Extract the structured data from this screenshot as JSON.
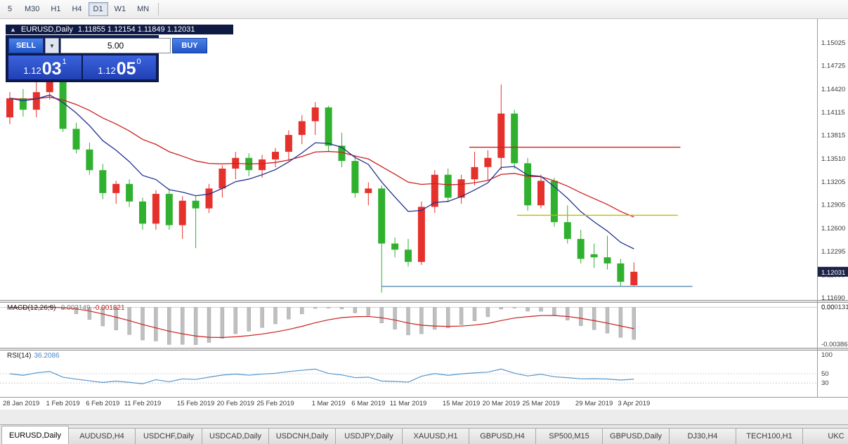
{
  "toolbar": {
    "timeframes": [
      {
        "label": "5",
        "selected": false
      },
      {
        "label": "M30",
        "selected": false
      },
      {
        "label": "H1",
        "selected": false
      },
      {
        "label": "H4",
        "selected": false
      },
      {
        "label": "D1",
        "selected": true
      },
      {
        "label": "W1",
        "selected": false
      },
      {
        "label": "MN",
        "selected": false
      }
    ]
  },
  "chart_header": {
    "symbol_title": "EURUSD,Daily",
    "ohlc": "1.11855 1.12154 1.11849 1.12031"
  },
  "trade_panel": {
    "sell_label": "SELL",
    "buy_label": "BUY",
    "volume": "5.00",
    "dropdown_glyph": "▼",
    "sell_price": {
      "base": "1.12",
      "pips": "03",
      "pt": "1"
    },
    "buy_price": {
      "base": "1.12",
      "pips": "05",
      "pt": "0"
    }
  },
  "price_axis": {
    "ticks": [
      1.15025,
      1.14725,
      1.1442,
      1.14115,
      1.13815,
      1.1351,
      1.13205,
      1.12905,
      1.126,
      1.12295,
      1.1199,
      1.1169
    ],
    "current_price_tag": "1.12031",
    "tag_color": "#1b2447"
  },
  "indicators": {
    "macd": {
      "label": "MACD(12,26,9)",
      "value_main": "-0.003149",
      "value_signal": "-0.001821",
      "scale_top": "0.0001313",
      "scale_zero": "0.00",
      "scale_bottom": "-0.00386"
    },
    "rsi": {
      "label": "RSI(14)",
      "value": "36.2086",
      "scale": [
        "100",
        "50",
        "30"
      ]
    }
  },
  "chart_data": {
    "type": "candlestick",
    "title": "EURUSD,Daily",
    "ylim": [
      1.11662,
      1.15337
    ],
    "ma_fast_period": 8,
    "ma_slow_period": 21,
    "macd_params": [
      12,
      26,
      9
    ],
    "rsi_period": 14,
    "colors": {
      "up": "#e5312b",
      "down": "#2fb12f",
      "ma_fast": "#23318f",
      "ma_slow": "#cc1f1f",
      "macd_hist": "#bfbfbf",
      "macd_signal": "#cc1f1f",
      "rsi": "#5596cc",
      "hline_red": "#d02020",
      "hline_yellow": "#bdbd00",
      "hline_blue": "#6090b8"
    },
    "candles": [
      [
        1.1405,
        1.1438,
        1.1396,
        1.143
      ],
      [
        1.143,
        1.1442,
        1.1406,
        1.1415
      ],
      [
        1.1415,
        1.1455,
        1.1405,
        1.1438
      ],
      [
        1.1438,
        1.146,
        1.1428,
        1.1452
      ],
      [
        1.1452,
        1.1456,
        1.1386,
        1.139
      ],
      [
        1.139,
        1.1398,
        1.1358,
        1.1363
      ],
      [
        1.1363,
        1.1372,
        1.133,
        1.1336
      ],
      [
        1.1336,
        1.1344,
        1.1298,
        1.1306
      ],
      [
        1.1306,
        1.1322,
        1.1292,
        1.1318
      ],
      [
        1.1318,
        1.1324,
        1.1288,
        1.1295
      ],
      [
        1.1295,
        1.13,
        1.1258,
        1.1266
      ],
      [
        1.1266,
        1.131,
        1.1258,
        1.1305
      ],
      [
        1.1305,
        1.1312,
        1.1258,
        1.1264
      ],
      [
        1.1264,
        1.1302,
        1.1246,
        1.1296
      ],
      [
        1.1296,
        1.1302,
        1.1234,
        1.1286
      ],
      [
        1.1286,
        1.1318,
        1.128,
        1.1312
      ],
      [
        1.1312,
        1.1342,
        1.13,
        1.1338
      ],
      [
        1.1338,
        1.136,
        1.1324,
        1.1352
      ],
      [
        1.1352,
        1.1358,
        1.1328,
        1.1336
      ],
      [
        1.1336,
        1.1356,
        1.1326,
        1.135
      ],
      [
        1.135,
        1.1365,
        1.134,
        1.136
      ],
      [
        1.136,
        1.1388,
        1.1348,
        1.1382
      ],
      [
        1.1382,
        1.1408,
        1.137,
        1.14
      ],
      [
        1.14,
        1.1425,
        1.1382,
        1.1418
      ],
      [
        1.1418,
        1.142,
        1.136,
        1.1368
      ],
      [
        1.1368,
        1.1385,
        1.134,
        1.1348
      ],
      [
        1.1348,
        1.1355,
        1.13,
        1.1306
      ],
      [
        1.1306,
        1.132,
        1.129,
        1.1312
      ],
      [
        1.1312,
        1.1316,
        1.1176,
        1.124
      ],
      [
        1.124,
        1.1248,
        1.1222,
        1.1232
      ],
      [
        1.1232,
        1.1246,
        1.121,
        1.1216
      ],
      [
        1.1216,
        1.1295,
        1.1212,
        1.1288
      ],
      [
        1.1288,
        1.1336,
        1.128,
        1.133
      ],
      [
        1.133,
        1.1338,
        1.1294,
        1.13
      ],
      [
        1.13,
        1.133,
        1.1292,
        1.1324
      ],
      [
        1.1324,
        1.136,
        1.1316,
        1.134
      ],
      [
        1.134,
        1.1362,
        1.1322,
        1.1352
      ],
      [
        1.1352,
        1.1448,
        1.1336,
        1.141
      ],
      [
        1.141,
        1.1415,
        1.1338,
        1.1345
      ],
      [
        1.1345,
        1.1352,
        1.1283,
        1.129
      ],
      [
        1.129,
        1.133,
        1.1286,
        1.1322
      ],
      [
        1.1322,
        1.1326,
        1.1262,
        1.1268
      ],
      [
        1.1268,
        1.129,
        1.124,
        1.1246
      ],
      [
        1.1246,
        1.1258,
        1.1214,
        1.122
      ],
      [
        1.1226,
        1.124,
        1.1208,
        1.1222
      ],
      [
        1.1222,
        1.125,
        1.1206,
        1.1214
      ],
      [
        1.1214,
        1.122,
        1.1184,
        1.119
      ],
      [
        1.11855,
        1.12154,
        1.11849,
        1.12031
      ]
    ],
    "x_labels": [
      {
        "i": 0,
        "t": "28 Jan 2019"
      },
      {
        "i": 4,
        "t": "1 Feb 2019"
      },
      {
        "i": 7,
        "t": "6 Feb 2019"
      },
      {
        "i": 10,
        "t": "11 Feb 2019"
      },
      {
        "i": 14,
        "t": "15 Feb 2019"
      },
      {
        "i": 17,
        "t": "20 Feb 2019"
      },
      {
        "i": 20,
        "t": "25 Feb 2019"
      },
      {
        "i": 24,
        "t": "1 Mar 2019"
      },
      {
        "i": 27,
        "t": "6 Mar 2019"
      },
      {
        "i": 30,
        "t": "11 Mar 2019"
      },
      {
        "i": 34,
        "t": "15 Mar 2019"
      },
      {
        "i": 37,
        "t": "20 Mar 2019"
      },
      {
        "i": 40,
        "t": "25 Mar 2019"
      },
      {
        "i": 44,
        "t": "29 Mar 2019"
      },
      {
        "i": 47,
        "t": "3 Apr 2019"
      }
    ],
    "hlines": [
      {
        "price": 1.1366,
        "from": 34.6,
        "to": 50.5,
        "color_key": "hline_red"
      },
      {
        "price": 1.1277,
        "from": 38.2,
        "to": 50.3,
        "color_key": "hline_yellow"
      },
      {
        "price": 1.1184,
        "from": 28.0,
        "to": 51.4,
        "color_key": "hline_blue"
      }
    ]
  },
  "tabs": [
    {
      "label": "EURUSD,Daily",
      "active": true
    },
    {
      "label": "AUDUSD,H4",
      "active": false
    },
    {
      "label": "USDCHF,Daily",
      "active": false
    },
    {
      "label": "USDCAD,Daily",
      "active": false
    },
    {
      "label": "USDCNH,Daily",
      "active": false
    },
    {
      "label": "USDJPY,Daily",
      "active": false
    },
    {
      "label": "XAUUSD,H1",
      "active": false
    },
    {
      "label": "GBPUSD,H4",
      "active": false
    },
    {
      "label": "SP500,M15",
      "active": false
    },
    {
      "label": "GBPUSD,Daily",
      "active": false
    },
    {
      "label": "DJ30,H4",
      "active": false
    },
    {
      "label": "TECH100,H1",
      "active": false
    },
    {
      "label": "UKC",
      "active": false
    }
  ]
}
